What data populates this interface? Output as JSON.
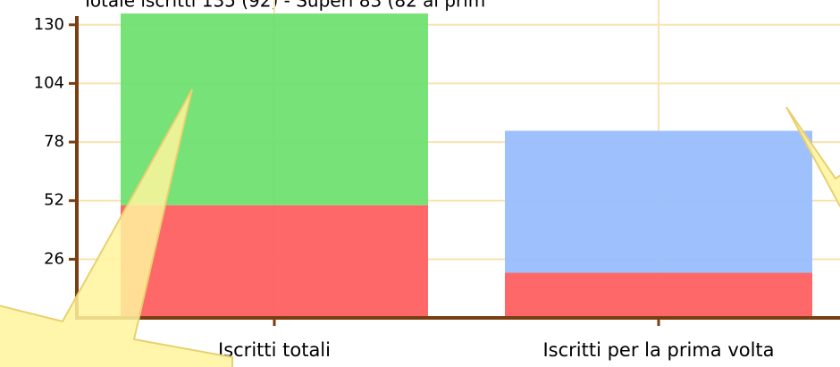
{
  "chart_data": {
    "type": "stacked-bar",
    "title": "Totale iscritti 135 (92) - Superi 83 (82 al prim",
    "categories": [
      "Iscritti totali",
      "Iscritti per la prima volta"
    ],
    "series": [
      {
        "colors": [
          "#ff6060",
          "#ff6060"
        ],
        "values": [
          50,
          20
        ]
      },
      {
        "colors": [
          "#6fe070",
          "#99bdfc"
        ],
        "values": [
          85,
          63
        ]
      }
    ],
    "ylim": [
      0,
      141
    ],
    "yticks": [
      26,
      52,
      78,
      104,
      130
    ],
    "grid": true
  }
}
